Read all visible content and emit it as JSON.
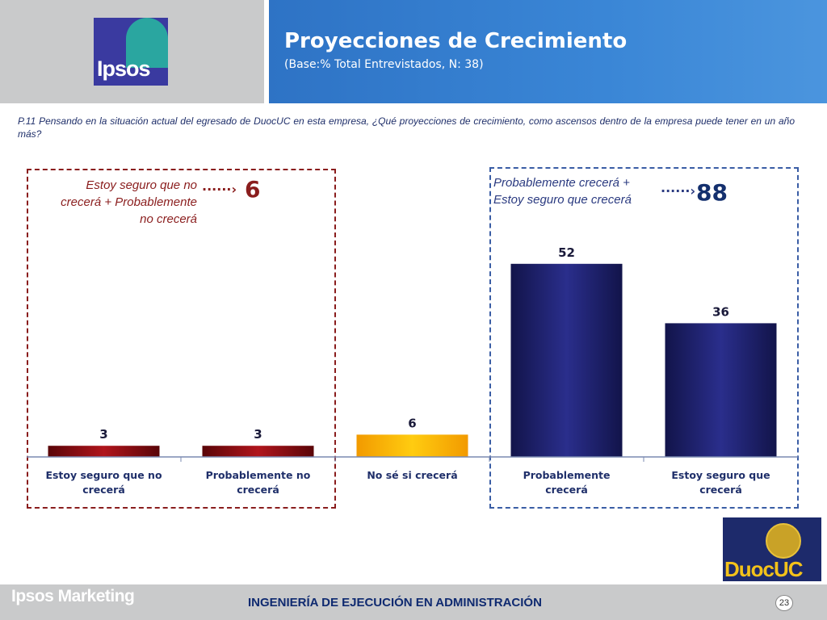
{
  "header": {
    "title": "Proyecciones de Crecimiento",
    "subtitle": "(Base:% Total Entrevistados, N: 38)",
    "logo_text": "Ipsos"
  },
  "question": "P.11 Pensando en la situación actual del egresado de DuocUC en  esta empresa, ¿Qué  proyecciones de crecimiento, como ascensos dentro de la empresa  puede tener en un año más?",
  "annotations": {
    "left_text_line1": "Estoy seguro que no",
    "left_text_line2": "crecerá + Probablemente",
    "left_text_line3": "no crecerá",
    "left_value": "6",
    "right_text_line1": "Probablemente crecerá +",
    "right_text_line2": "Estoy seguro que crecerá",
    "right_value": "88",
    "arrow_glyph": "······›"
  },
  "chart_data": {
    "type": "bar",
    "categories": [
      "Estoy seguro que no crecerá",
      "Probablemente no crecerá",
      "No sé si crecerá",
      "Probablemente crecerá",
      "Estoy seguro que crecerá"
    ],
    "values": [
      3,
      3,
      6,
      52,
      36
    ],
    "title": "Proyecciones de Crecimiento",
    "xlabel": "",
    "ylabel": "",
    "ylim": [
      0,
      60
    ],
    "colors": [
      "#8b0f14",
      "#8b0f14",
      "#f5b400",
      "#1f2266",
      "#1f2266"
    ],
    "grid": false,
    "legend": "none"
  },
  "footer": {
    "brand": "Ipsos Marketing",
    "text": "INGENIERÍA DE EJECUCIÓN EN ADMINISTRACIÓN",
    "page": "23",
    "partner_logo_text": "DuocUC"
  },
  "colors": {
    "header_blue": "#3a86d6",
    "header_gray": "#c9cacb",
    "negative": "#8a1d1d",
    "positive": "#14306e"
  }
}
